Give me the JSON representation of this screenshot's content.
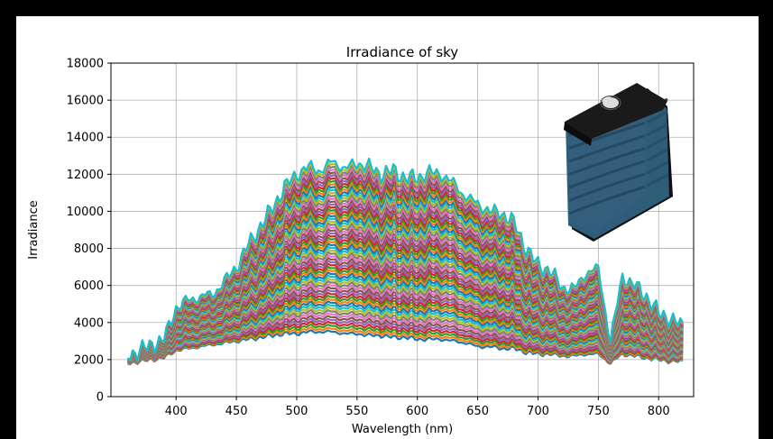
{
  "chart_data": {
    "type": "line",
    "title": "Irradiance of sky",
    "xlabel": "Wavelength (nm)",
    "ylabel": "Irradiance",
    "xlim": [
      346,
      829
    ],
    "ylim": [
      0,
      18000
    ],
    "xticks": [
      400,
      450,
      500,
      550,
      600,
      650,
      700,
      750,
      800
    ],
    "yticks": [
      0,
      2000,
      4000,
      6000,
      8000,
      10000,
      12000,
      14000,
      16000,
      18000
    ],
    "grid": true,
    "x_range": [
      360,
      820
    ],
    "series_count": 60,
    "upper_envelope": {
      "x": [
        360,
        370,
        380,
        390,
        400,
        410,
        420,
        430,
        440,
        450,
        460,
        470,
        480,
        490,
        500,
        510,
        520,
        530,
        540,
        550,
        560,
        570,
        580,
        590,
        600,
        610,
        620,
        630,
        640,
        650,
        660,
        670,
        680,
        690,
        700,
        710,
        720,
        730,
        740,
        750,
        760,
        770,
        780,
        790,
        800,
        810,
        820
      ],
      "values": [
        2200,
        2500,
        2800,
        3100,
        4800,
        5200,
        5400,
        5500,
        6200,
        7000,
        8200,
        9200,
        10200,
        11300,
        12000,
        12400,
        12200,
        12700,
        12300,
        12600,
        12400,
        12000,
        12200,
        11800,
        11800,
        12100,
        12000,
        11500,
        10800,
        10400,
        10000,
        9900,
        9400,
        8000,
        7100,
        6800,
        5900,
        5800,
        6700,
        6900,
        3000,
        6500,
        6000,
        5400,
        4500,
        4200,
        3800
      ]
    },
    "lower_envelope": {
      "x": [
        360,
        370,
        380,
        390,
        400,
        410,
        420,
        430,
        440,
        450,
        460,
        470,
        480,
        490,
        500,
        510,
        520,
        530,
        540,
        550,
        560,
        570,
        580,
        590,
        600,
        610,
        620,
        630,
        640,
        650,
        660,
        670,
        680,
        690,
        700,
        710,
        720,
        730,
        740,
        750,
        760,
        770,
        780,
        790,
        800,
        810,
        820
      ],
      "values": [
        1800,
        1900,
        2000,
        2100,
        2500,
        2600,
        2700,
        2800,
        2900,
        3000,
        3100,
        3200,
        3300,
        3400,
        3400,
        3500,
        3500,
        3500,
        3400,
        3400,
        3300,
        3300,
        3200,
        3200,
        3100,
        3100,
        3100,
        3000,
        2900,
        2700,
        2700,
        2600,
        2600,
        2400,
        2300,
        2300,
        2200,
        2200,
        2300,
        2300,
        1800,
        2300,
        2200,
        2100,
        2000,
        1900,
        1900
      ]
    },
    "series_colors": [
      "#1f77b4",
      "#ff7f0e",
      "#2ca02c",
      "#d62728",
      "#9467bd",
      "#8c564b",
      "#e377c2",
      "#7f7f7f",
      "#bcbd22",
      "#17becf"
    ]
  },
  "inset_image": {
    "icon": "sensor-device-icon",
    "body_color": "#2e5d7a",
    "cap_color": "#1a1a1a",
    "lens_color": "#dcdcdc"
  }
}
